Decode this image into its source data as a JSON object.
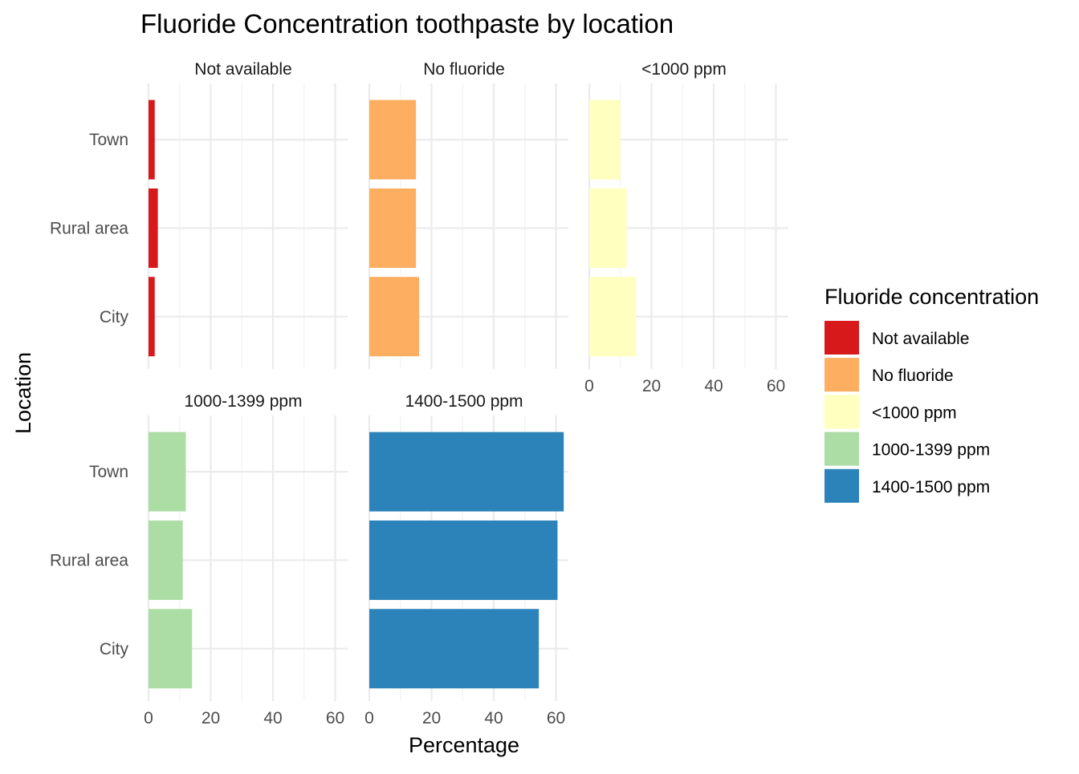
{
  "chart_data": {
    "type": "bar",
    "orientation": "horizontal",
    "title": "Fluoride Concentration toothpaste by location",
    "xlabel": "Percentage",
    "ylabel": "Location",
    "xlim": [
      0,
      64
    ],
    "x_ticks": [
      0,
      20,
      40,
      60
    ],
    "categories": [
      "Town",
      "Rural area",
      "City"
    ],
    "grid": true,
    "legend": {
      "title": "Fluoride concentration",
      "position": "right",
      "items": [
        {
          "label": "Not available",
          "color": "#D7191C"
        },
        {
          "label": "No fluoride",
          "color": "#FDAE61"
        },
        {
          "label": "<1000 ppm",
          "color": "#FFFFBF"
        },
        {
          "label": "1000-1399 ppm",
          "color": "#ABDDA4"
        },
        {
          "label": "1400-1500 ppm",
          "color": "#2B83BA"
        }
      ]
    },
    "series": [
      {
        "name": "Not available",
        "color": "#D7191C",
        "values": [
          2,
          3,
          2
        ]
      },
      {
        "name": "No fluoride",
        "color": "#FDAE61",
        "values": [
          15,
          15,
          16
        ]
      },
      {
        "name": "<1000 ppm",
        "color": "#FFFFBF",
        "values": [
          10,
          12,
          15
        ]
      },
      {
        "name": "1000-1399 ppm",
        "color": "#ABDDA4",
        "values": [
          12,
          11,
          14
        ]
      },
      {
        "name": "1400-1500 ppm",
        "color": "#2B83BA",
        "values": [
          62.5,
          60.5,
          54.5
        ]
      }
    ]
  }
}
